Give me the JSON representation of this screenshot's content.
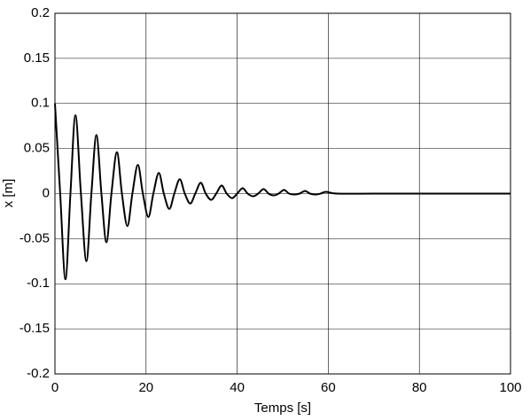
{
  "chart_data": {
    "type": "line",
    "xlabel": "Temps [s]",
    "ylabel": "x [m]",
    "x": [
      0,
      1.15,
      2.3,
      3.4,
      4.5,
      5.7,
      6.9,
      8.0,
      9.1,
      10.2,
      11.3,
      12.4,
      13.6,
      14.7,
      15.9,
      17.0,
      18.2,
      19.3,
      20.5,
      21.6,
      22.8,
      23.9,
      25.1,
      26.2,
      27.4,
      28.5,
      29.7,
      30.8,
      32.0,
      33.1,
      34.3,
      35.4,
      36.6,
      37.7,
      38.9,
      40.0,
      41.2,
      42.3,
      43.5,
      44.6,
      45.8,
      46.9,
      48.0,
      49.1,
      50.3,
      51.4,
      52.6,
      53.7,
      54.9,
      56.0,
      57.2,
      58.3,
      59.5,
      62,
      70,
      80,
      90,
      100
    ],
    "values": [
      0.1,
      0,
      -0.095,
      0,
      0.087,
      0,
      -0.075,
      0,
      0.065,
      0,
      -0.054,
      0,
      0.046,
      0,
      -0.036,
      0,
      0.032,
      0,
      -0.026,
      0,
      0.023,
      0,
      -0.017,
      0,
      0.016,
      0,
      -0.011,
      0,
      0.012,
      0,
      -0.007,
      0,
      0.009,
      0,
      -0.005,
      0,
      0.006,
      0,
      -0.003,
      0,
      0.005,
      0,
      -0.002,
      0,
      0.004,
      0,
      -0.001,
      0,
      0.003,
      0,
      -0.001,
      0,
      0.002,
      0,
      0,
      0,
      0,
      0
    ],
    "color": "#000000",
    "xlim": [
      0,
      100
    ],
    "xticks": [
      0,
      20,
      40,
      60,
      80,
      100
    ],
    "ylim": [
      -0.2,
      0.2
    ],
    "yticks": [
      -0.2,
      -0.15,
      -0.1,
      -0.05,
      0,
      0.05,
      0.1,
      0.15,
      0.2
    ],
    "grid": true
  }
}
